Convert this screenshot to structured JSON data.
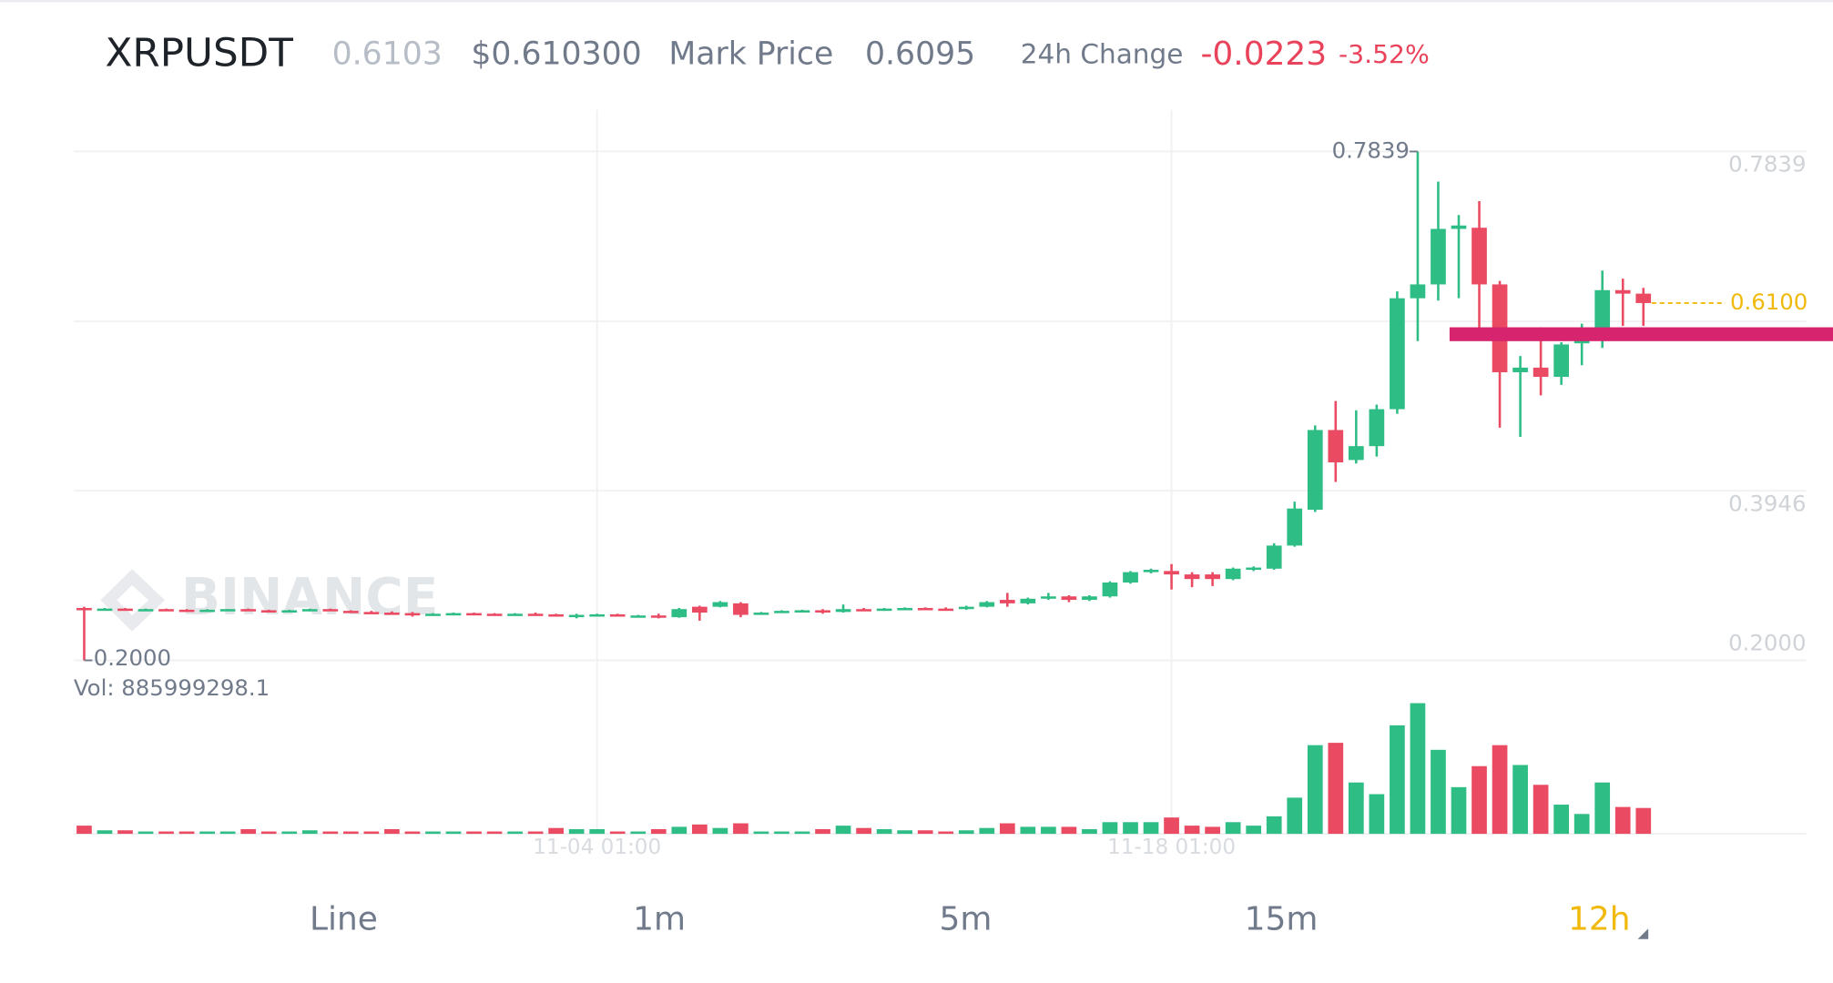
{
  "header": {
    "symbol": "XRPUSDT",
    "last_price": "0.6103",
    "usd_price": "$0.610300",
    "mark_price_label": "Mark Price",
    "mark_price": "0.6095",
    "change_label": "24h Change",
    "change": "-0.0223",
    "change_percent": "-3.52%"
  },
  "watermark": "BINANCE",
  "tabs": [
    "Line",
    "1m",
    "5m",
    "15m",
    "12h"
  ],
  "selected_tab_index": 4,
  "chart_data": {
    "type": "candlestick",
    "categories": [
      null,
      null,
      null,
      null,
      null,
      null,
      null,
      null,
      null,
      null,
      null,
      null,
      null,
      null,
      null,
      null,
      null,
      null,
      null,
      null,
      null,
      null,
      null,
      null,
      null,
      "11-04 01:00",
      null,
      null,
      null,
      null,
      null,
      null,
      null,
      null,
      null,
      null,
      null,
      null,
      null,
      null,
      null,
      null,
      null,
      null,
      null,
      null,
      null,
      null,
      null,
      null,
      null,
      null,
      null,
      "11-18 01:00",
      null,
      null,
      null,
      null,
      null,
      null,
      null,
      null,
      null,
      null,
      null,
      null,
      null,
      null,
      null,
      null,
      null,
      null,
      null,
      null,
      null,
      null,
      null
    ],
    "open": [
      0.2601,
      0.2588,
      0.2594,
      0.2581,
      0.2588,
      0.2581,
      0.2575,
      0.2581,
      0.2588,
      0.2575,
      0.2568,
      0.2575,
      0.2588,
      0.2568,
      0.2555,
      0.2548,
      0.2542,
      0.2522,
      0.2535,
      0.2542,
      0.2535,
      0.2522,
      0.2535,
      0.2528,
      0.2508,
      0.2522,
      0.2528,
      0.2508,
      0.2515,
      0.2495,
      0.2615,
      0.2615,
      0.2654,
      0.2535,
      0.2555,
      0.2568,
      0.2575,
      0.2555,
      0.2588,
      0.2575,
      0.2594,
      0.2601,
      0.2594,
      0.2588,
      0.2615,
      0.2694,
      0.2654,
      0.2707,
      0.2734,
      0.2694,
      0.2734,
      0.2893,
      0.3012,
      0.3025,
      0.2986,
      0.2986,
      0.2933,
      0.3039,
      0.3052,
      0.3317,
      0.3728,
      0.4643,
      0.4299,
      0.4458,
      0.4882,
      0.6155,
      0.6314,
      0.6951,
      0.6964,
      0.6314,
      0.5306,
      0.5359,
      0.5253,
      0.5638,
      0.5757,
      0.6248,
      0.6208
    ],
    "high": [
      0.2615,
      0.2601,
      0.2601,
      0.2594,
      0.2594,
      0.2588,
      0.2588,
      0.2588,
      0.2594,
      0.2581,
      0.2581,
      0.2594,
      0.2594,
      0.2575,
      0.2568,
      0.2562,
      0.2555,
      0.2542,
      0.2548,
      0.2548,
      0.2542,
      0.2542,
      0.2548,
      0.2535,
      0.2535,
      0.2535,
      0.2535,
      0.2522,
      0.2535,
      0.2601,
      0.2627,
      0.2681,
      0.2668,
      0.2555,
      0.2575,
      0.2581,
      0.2588,
      0.2641,
      0.2601,
      0.2601,
      0.2608,
      0.2608,
      0.2608,
      0.2627,
      0.2681,
      0.2774,
      0.272,
      0.2774,
      0.2747,
      0.2747,
      0.2906,
      0.3025,
      0.3052,
      0.3105,
      0.3012,
      0.3012,
      0.3065,
      0.3078,
      0.3344,
      0.3821,
      0.4696,
      0.4975,
      0.4869,
      0.4935,
      0.6234,
      0.7839,
      0.7494,
      0.711,
      0.7269,
      0.6354,
      0.5492,
      0.5823,
      0.5651,
      0.5863,
      0.6473,
      0.638,
      0.6274
    ],
    "low": [
      0.2,
      0.2575,
      0.2581,
      0.2575,
      0.2575,
      0.2568,
      0.2568,
      0.2568,
      0.2575,
      0.2562,
      0.2555,
      0.2562,
      0.2568,
      0.2548,
      0.2542,
      0.2535,
      0.2502,
      0.2515,
      0.2528,
      0.2528,
      0.2522,
      0.2515,
      0.2522,
      0.2508,
      0.2482,
      0.2502,
      0.2508,
      0.2495,
      0.2482,
      0.2488,
      0.2455,
      0.2608,
      0.2495,
      0.2528,
      0.2548,
      0.2555,
      0.2535,
      0.2548,
      0.2568,
      0.2568,
      0.2581,
      0.2588,
      0.2581,
      0.2581,
      0.2608,
      0.2615,
      0.2641,
      0.2694,
      0.2668,
      0.2681,
      0.272,
      0.288,
      0.2999,
      0.2813,
      0.284,
      0.2853,
      0.292,
      0.3025,
      0.3039,
      0.3304,
      0.3702,
      0.4047,
      0.4259,
      0.4338,
      0.4829,
      0.5664,
      0.6128,
      0.6155,
      0.5784,
      0.467,
      0.4564,
      0.5041,
      0.5161,
      0.5386,
      0.5585,
      0.5837,
      0.5837
    ],
    "close": [
      0.259,
      0.2594,
      0.2581,
      0.2588,
      0.2581,
      0.2575,
      0.2581,
      0.2588,
      0.2575,
      0.2568,
      0.2575,
      0.2588,
      0.2568,
      0.2555,
      0.2548,
      0.2542,
      0.2522,
      0.2535,
      0.2542,
      0.2535,
      0.2522,
      0.2535,
      0.2528,
      0.2508,
      0.2522,
      0.2528,
      0.2508,
      0.2515,
      0.2495,
      0.2588,
      0.2548,
      0.2668,
      0.2522,
      0.2548,
      0.2568,
      0.2575,
      0.2555,
      0.2588,
      0.2575,
      0.2594,
      0.2601,
      0.2594,
      0.2588,
      0.2615,
      0.2668,
      0.2654,
      0.2707,
      0.2734,
      0.2694,
      0.2734,
      0.2893,
      0.3012,
      0.3039,
      0.2986,
      0.2933,
      0.2933,
      0.3052,
      0.3065,
      0.3317,
      0.3742,
      0.4643,
      0.4272,
      0.4458,
      0.4882,
      0.6155,
      0.6314,
      0.6951,
      0.699,
      0.6314,
      0.5306,
      0.5359,
      0.5253,
      0.5625,
      0.5797,
      0.6248,
      0.6208,
      0.61
    ],
    "volume": [
      280000000,
      120000000,
      120000000,
      80000000,
      80000000,
      80000000,
      80000000,
      80000000,
      160000000,
      80000000,
      80000000,
      120000000,
      80000000,
      80000000,
      80000000,
      160000000,
      80000000,
      80000000,
      80000000,
      80000000,
      80000000,
      80000000,
      80000000,
      200000000,
      160000000,
      160000000,
      80000000,
      80000000,
      160000000,
      240000000,
      320000000,
      200000000,
      360000000,
      80000000,
      80000000,
      80000000,
      160000000,
      280000000,
      200000000,
      160000000,
      120000000,
      120000000,
      80000000,
      120000000,
      200000000,
      360000000,
      240000000,
      240000000,
      240000000,
      160000000,
      400000000,
      400000000,
      400000000,
      560000000,
      280000000,
      240000000,
      400000000,
      280000000,
      600000000,
      1240000000,
      3040000000,
      3120000000,
      1760000000,
      1360000000,
      3720000000,
      4480000000,
      2880000000,
      1600000000,
      2320000000,
      3040000000,
      2360000000,
      1680000000,
      1000000000,
      680000000,
      1760000000,
      920000000,
      885999298.1
    ],
    "up_color": "#2ebd85",
    "down_color": "#ea4a62",
    "ylim": [
      0.2,
      0.7839
    ],
    "yticks": [
      {
        "value": 0.2,
        "label": "0.2000"
      },
      {
        "value": 0.3946,
        "label": "0.3946"
      },
      {
        "value": 0.7839,
        "label": "0.7839"
      }
    ],
    "volume_lim": [
      0,
      4600000000
    ],
    "volume_label": "Vol: 885999298.1",
    "high_marker": {
      "value": 0.7839,
      "label": "0.7839"
    },
    "low_marker": {
      "value": 0.2,
      "label": "0.2000"
    },
    "price_line": {
      "value": 0.61,
      "label": "0.6100",
      "color": "#f0b90b"
    },
    "grid": true
  }
}
